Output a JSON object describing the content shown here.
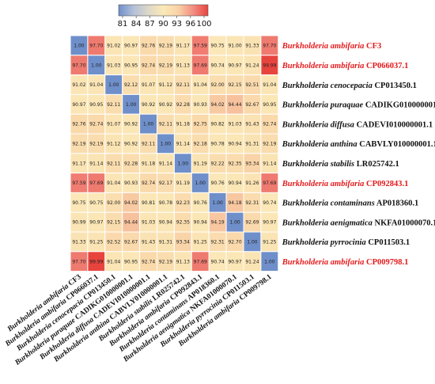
{
  "chart_data": {
    "type": "heatmap",
    "title": "",
    "colorbar": {
      "ticks": [
        "81",
        "84",
        "87",
        "90",
        "93",
        "96",
        "100"
      ],
      "range": [
        81,
        100
      ],
      "colors": [
        "#6f8fca",
        "#b3c0d8",
        "#ddd8c8",
        "#fbe9b8",
        "#f9d2a6",
        "#f28e82",
        "#e8443e"
      ]
    },
    "highlight_color": "#e41a1c",
    "default_label_color": "#111111",
    "row_labels": [
      {
        "genus": "Burkholderia",
        "species": "ambifaria",
        "accession": "CF3",
        "highlight": true
      },
      {
        "genus": "Burkholderia",
        "species": "ambifaria",
        "accession": "CP066037.1",
        "highlight": true
      },
      {
        "genus": "Burkholderia",
        "species": "cenocepacia",
        "accession": "CP013450.1",
        "highlight": false
      },
      {
        "genus": "Burkholderia",
        "species": "puraquae",
        "accession": "CADIKG010000001.1",
        "highlight": false
      },
      {
        "genus": "Burkholderia",
        "species": "diffusa",
        "accession": "CADEVI010000001.1",
        "highlight": false
      },
      {
        "genus": "Burkholderia",
        "species": "anthina",
        "accession": "CABVLY010000001.1",
        "highlight": false
      },
      {
        "genus": "Burkholderia",
        "species": "stabilis",
        "accession": "LR025742.1",
        "highlight": false
      },
      {
        "genus": "Burkholderia",
        "species": "ambifaria",
        "accession": "CP092843.1",
        "highlight": true
      },
      {
        "genus": "Burkholderia",
        "species": "contaminans",
        "accession": "AP018360.1",
        "highlight": false
      },
      {
        "genus": "Burkholderia",
        "species": "aenigmatica",
        "accession": "NKFA01000070.1",
        "highlight": false
      },
      {
        "genus": "Burkholderia",
        "species": "pyrrocinia",
        "accession": "CP011503.1",
        "highlight": false
      },
      {
        "genus": "Burkholderia",
        "species": "ambifaria",
        "accession": "CP009798.1",
        "highlight": true
      }
    ],
    "values": [
      [
        "1.00",
        "97.70",
        "91.02",
        "90.97",
        "92.76",
        "92.19",
        "91.17",
        "97.59",
        "90.75",
        "91.00",
        "91.33",
        "97.70"
      ],
      [
        "97.70",
        "1.00",
        "91.03",
        "90.95",
        "92.74",
        "92.19",
        "91.13",
        "97.69",
        "90.74",
        "90.97",
        "91.24",
        "99.99"
      ],
      [
        "91.02",
        "91.04",
        "1.00",
        "92.12",
        "91.07",
        "91.12",
        "92.11",
        "91.04",
        "92.00",
        "92.15",
        "92.51",
        "91.04"
      ],
      [
        "90.97",
        "90.95",
        "92.11",
        "1.00",
        "90.92",
        "90.92",
        "92.28",
        "90.93",
        "94.02",
        "94.44",
        "92.67",
        "90.95"
      ],
      [
        "92.76",
        "92.74",
        "91.07",
        "90.92",
        "1.00",
        "92.11",
        "91.18",
        "92.75",
        "90.82",
        "91.03",
        "91.43",
        "92.74"
      ],
      [
        "92.19",
        "92.19",
        "91.12",
        "90.92",
        "92.11",
        "1.00",
        "91.14",
        "92.18",
        "90.78",
        "90.94",
        "91.31",
        "92.19"
      ],
      [
        "91.17",
        "91.14",
        "92.11",
        "92.28",
        "91.18",
        "91.14",
        "1.00",
        "91.19",
        "92.22",
        "92.35",
        "93.34",
        "91.14"
      ],
      [
        "97.59",
        "97.69",
        "91.04",
        "90.93",
        "92.74",
        "92.17",
        "91.19",
        "1.00",
        "90.76",
        "90.94",
        "91.26",
        "97.69"
      ],
      [
        "90.75",
        "90.75",
        "92.00",
        "94.02",
        "90.81",
        "90.78",
        "92.23",
        "90.76",
        "1.00",
        "94.18",
        "92.31",
        "90.74"
      ],
      [
        "90.99",
        "90.97",
        "92.15",
        "94.44",
        "91.03",
        "90.94",
        "92.35",
        "90.94",
        "94.19",
        "1.00",
        "92.69",
        "90.97"
      ],
      [
        "91.33",
        "91.25",
        "92.52",
        "92.67",
        "91.43",
        "91.31",
        "93.34",
        "91.25",
        "92.31",
        "92.70",
        "1.00",
        "91.25"
      ],
      [
        "97.70",
        "99.99",
        "91.04",
        "90.95",
        "92.74",
        "92.19",
        "91.13",
        "97.69",
        "90.74",
        "90.97",
        "91.24",
        "1.00"
      ]
    ]
  }
}
